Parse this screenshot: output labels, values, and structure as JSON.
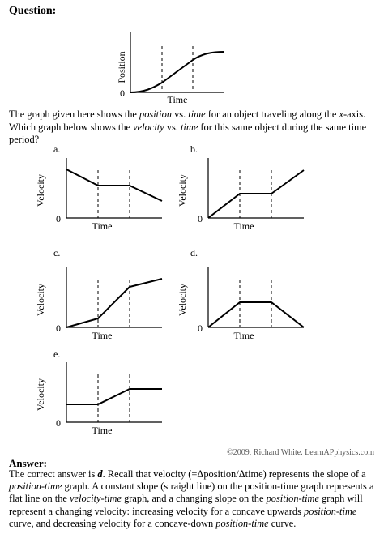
{
  "question": {
    "heading": "Question:",
    "intro_parts": [
      "The graph given here shows the ",
      "position",
      " vs. ",
      "time",
      " for an object traveling along the ",
      "x",
      "-axis. Which graph below shows the ",
      "velocity",
      " vs. ",
      "time",
      " for this same object during the same time period?"
    ]
  },
  "graphs": {
    "position_graph": {
      "ylabel": "Position",
      "xlabel": "Time",
      "origin": "0"
    },
    "options": [
      {
        "letter": "a.",
        "ylabel": "Velocity",
        "xlabel": "Time",
        "origin": "0"
      },
      {
        "letter": "b.",
        "ylabel": "Velocity",
        "xlabel": "Time",
        "origin": "0"
      },
      {
        "letter": "c.",
        "ylabel": "Velocity",
        "xlabel": "Time",
        "origin": "0"
      },
      {
        "letter": "d.",
        "ylabel": "Velocity",
        "xlabel": "Time",
        "origin": "0"
      },
      {
        "letter": "e.",
        "ylabel": "Velocity",
        "xlabel": "Time",
        "origin": "0"
      }
    ]
  },
  "credit": "©2009, Richard White. LearnAPphysics.com",
  "answer": {
    "heading": "Answer:",
    "parts": [
      "The correct answer is ",
      "d",
      ". Recall that velocity (=Δposition/Δtime) represents the slope of a ",
      "position-time",
      " graph. A constant slope (straight line) on the position-time graph represents a flat line on the ",
      "velocity-time",
      " graph, and a changing slope on the ",
      "position-time",
      " graph will represent a changing velocity: increasing velocity for a concave upwards ",
      "position-time",
      " curve, and decreasing velocity for a concave-down ",
      "position-time",
      " curve."
    ]
  }
}
